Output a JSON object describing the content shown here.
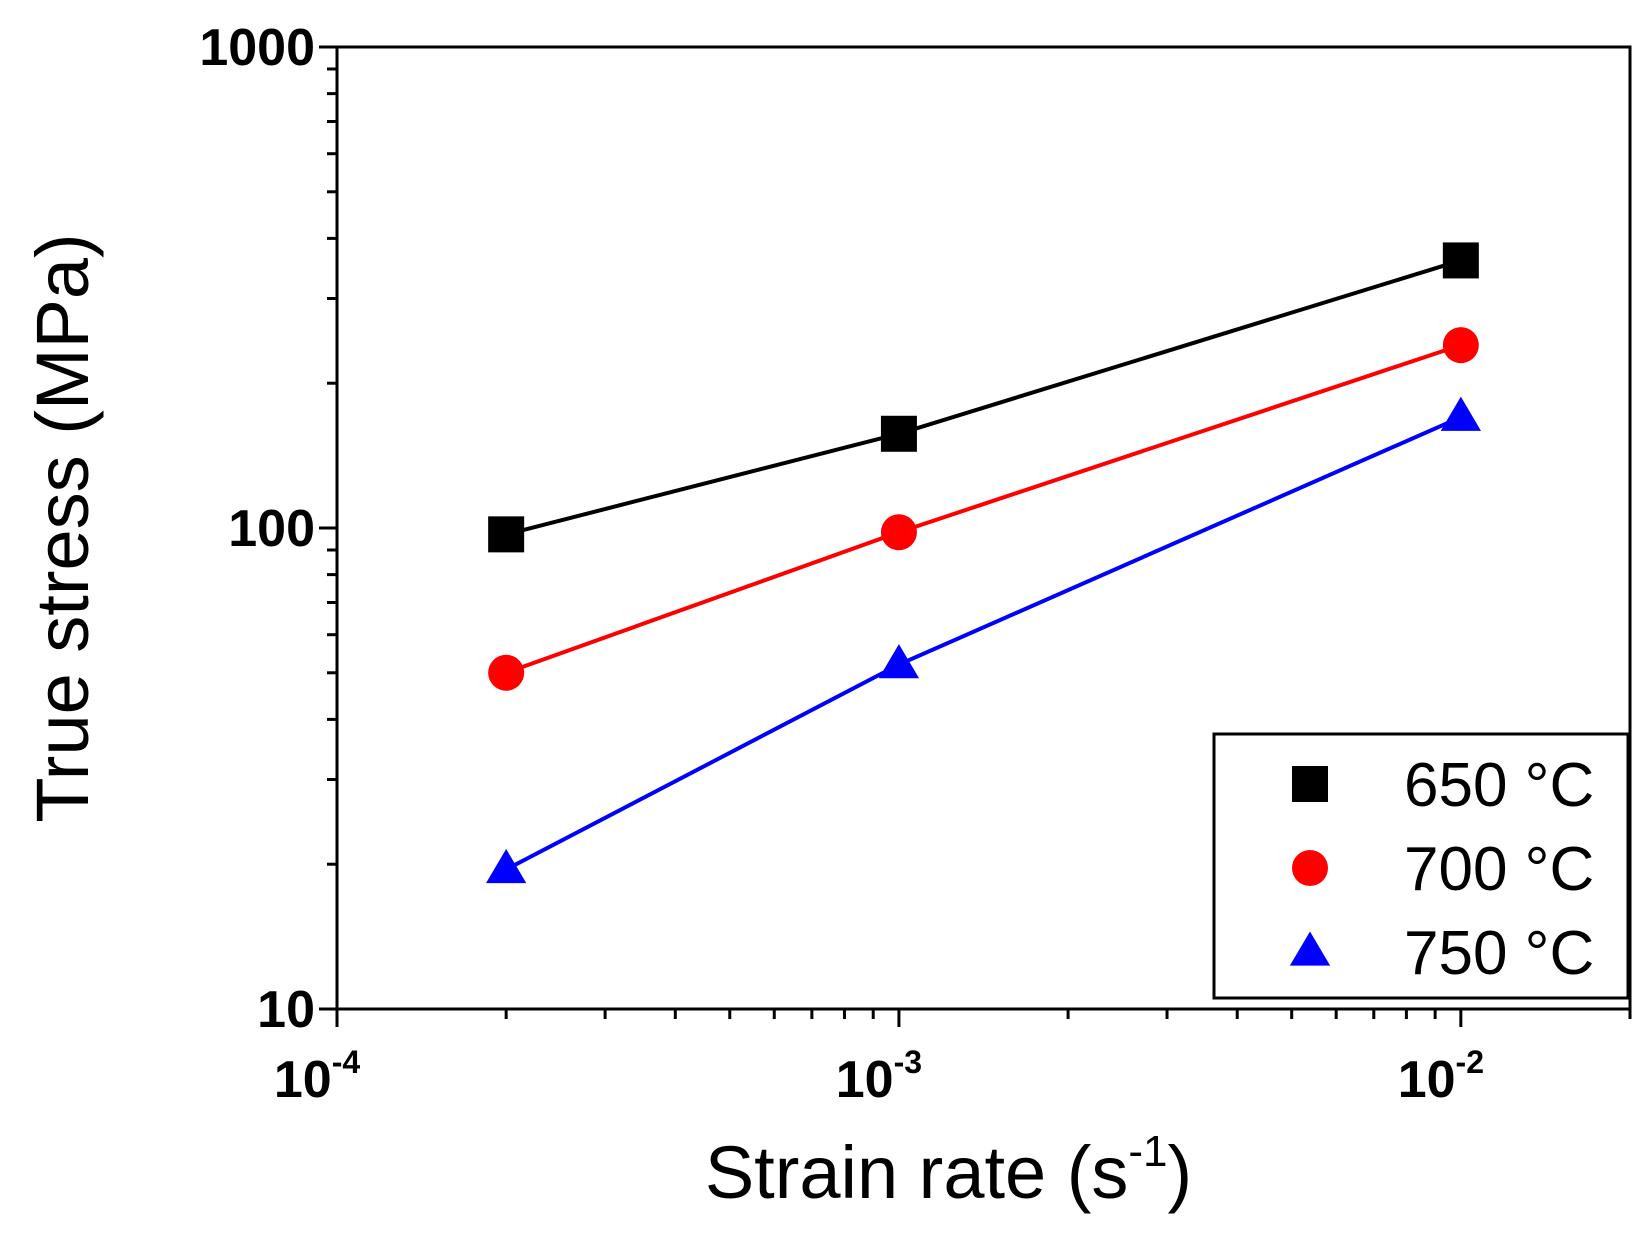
{
  "chart_data": {
    "type": "line",
    "x_scale": "log",
    "y_scale": "log",
    "x": [
      0.0002,
      0.001,
      0.01
    ],
    "series": [
      {
        "name": "650 °C",
        "marker": "square",
        "color": "#000000",
        "values": [
          97,
          157,
          360
        ]
      },
      {
        "name": "700 °C",
        "marker": "circle",
        "color": "#ff0000",
        "values": [
          50,
          98,
          240
        ]
      },
      {
        "name": "750 °C",
        "marker": "triangle",
        "color": "#0000ff",
        "values": [
          19.5,
          52,
          170
        ]
      }
    ],
    "xlabel_main": "Strain rate (s",
    "xlabel_sup": "-1",
    "xlabel_close": ")",
    "ylabel": "True stress (MPa)",
    "xlim": [
      0.0001,
      0.02
    ],
    "ylim": [
      10,
      1000
    ],
    "x_ticks": [
      {
        "value": 0.0001,
        "base": "10",
        "exp": "-4"
      },
      {
        "value": 0.001,
        "base": "10",
        "exp": "-3"
      },
      {
        "value": 0.01,
        "base": "10",
        "exp": "-2"
      }
    ],
    "y_ticks": [
      {
        "value": 10,
        "label": "10"
      },
      {
        "value": 100,
        "label": "100"
      },
      {
        "value": 1000,
        "label": "1000"
      }
    ],
    "legend_position": "bottom-right",
    "grid": false
  }
}
